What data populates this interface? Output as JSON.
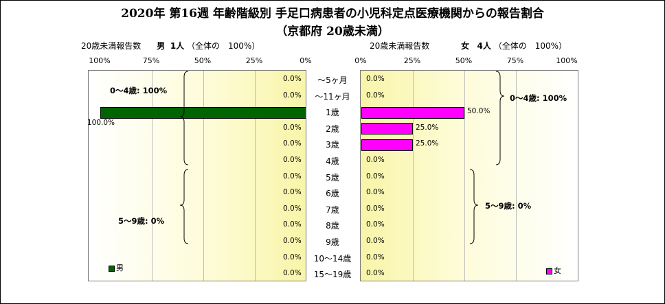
{
  "title_line1": "2020年 第16週 年齢階級別 手足口病患者の小児科定点医療機関からの報告割合",
  "title_line2": "（京都府 20歳未満）",
  "left_header": {
    "label": "20歳未満報告数",
    "sex": "男",
    "count": "1人",
    "total": "（全体の　100%）"
  },
  "right_header": {
    "label": "20歳未満報告数",
    "sex": "女",
    "count": "4人",
    "total": "（全体の　100%）"
  },
  "left_ticks": [
    "100%",
    "75%",
    "50%",
    "25%",
    "0%"
  ],
  "right_ticks": [
    "0%",
    "25%",
    "50%",
    "75%",
    "100%"
  ],
  "colors": {
    "male": "#006400",
    "female": "#ff00ff"
  },
  "chart_data": {
    "type": "bar",
    "orientation": "horizontal-butterfly",
    "title": "2020年 第16週 年齢階級別 手足口病患者の小児科定点医療機関からの報告割合（京都府 20歳未満）",
    "categories": [
      "～5ヶ月",
      "～11ヶ月",
      "1歳",
      "2歳",
      "3歳",
      "4歳",
      "5歳",
      "6歳",
      "7歳",
      "8歳",
      "9歳",
      "10～14歳",
      "15～19歳"
    ],
    "xlim": [
      0,
      100
    ],
    "series": [
      {
        "name": "男",
        "values": [
          0,
          0,
          100,
          0,
          0,
          0,
          0,
          0,
          0,
          0,
          0,
          0,
          0
        ],
        "labels": [
          "0.0%",
          "0.0%",
          "100.0%",
          "0.0%",
          "0.0%",
          "0.0%",
          "0.0%",
          "0.0%",
          "0.0%",
          "0.0%",
          "0.0%",
          "0.0%",
          "0.0%"
        ]
      },
      {
        "name": "女",
        "values": [
          0,
          0,
          50,
          25,
          25,
          0,
          0,
          0,
          0,
          0,
          0,
          0,
          0
        ],
        "labels": [
          "0.0%",
          "0.0%",
          "50.0%",
          "25.0%",
          "25.0%",
          "0.0%",
          "0.0%",
          "0.0%",
          "0.0%",
          "0.0%",
          "0.0%",
          "0.0%",
          "0.0%"
        ]
      }
    ],
    "group_labels": {
      "male": [
        "0～4歳: 100%",
        "5～9歳: 0%"
      ],
      "female": [
        "0～4歳: 100%",
        "5～9歳: 0%"
      ]
    },
    "grid": true,
    "legend": [
      "男",
      "女"
    ]
  }
}
